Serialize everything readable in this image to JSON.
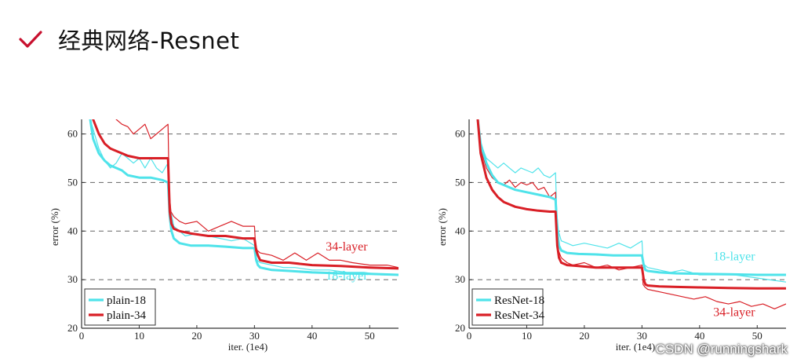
{
  "slide": {
    "title": "经典网络-Resnet",
    "watermark": "CSDN @runningshark",
    "accent_color": "#c8102e"
  },
  "chart_data": [
    {
      "type": "line",
      "xlabel": "iter. (1e4)",
      "ylabel": "error (%)",
      "xlim": [
        0,
        55
      ],
      "ylim": [
        20,
        63
      ],
      "xticks": [
        0,
        10,
        20,
        30,
        40,
        50
      ],
      "yticks": [
        20,
        30,
        40,
        50,
        60
      ],
      "grid": "horizontal-dashed",
      "legend_position": "bottom-left",
      "series": [
        {
          "name": "plain-18",
          "color": "#4fe3ea",
          "role": "train",
          "x": [
            1.5,
            3,
            4,
            5,
            6,
            7,
            8,
            9,
            10,
            11,
            12,
            13,
            14,
            15,
            15.2,
            15.5,
            16,
            17,
            18,
            20,
            22,
            24,
            26,
            28,
            30,
            30.2,
            30.5,
            31,
            33,
            35,
            37,
            40,
            43,
            46,
            49,
            52,
            55
          ],
          "y": [
            63,
            57,
            54.5,
            53,
            54,
            56,
            55,
            54,
            55,
            53,
            55,
            53,
            52,
            54,
            46,
            44,
            41,
            40,
            39,
            39.5,
            39,
            38.5,
            38,
            38.5,
            37,
            35,
            34,
            33.5,
            33,
            32.5,
            32.5,
            32,
            32,
            31.5,
            31.5,
            31,
            31
          ]
        },
        {
          "name": "plain-34",
          "color": "#d91f26",
          "role": "train",
          "x": [
            6,
            7,
            8,
            9,
            10,
            11,
            12,
            13,
            14,
            15,
            15.2,
            15.5,
            16,
            17,
            18,
            20,
            22,
            24,
            26,
            28,
            30,
            30.2,
            30.5,
            31,
            33,
            35,
            37,
            39,
            41,
            43,
            45,
            47,
            50,
            53,
            55
          ],
          "y": [
            63,
            62,
            61.5,
            60,
            61,
            62,
            59,
            60,
            61,
            62,
            48,
            44,
            43,
            42,
            41.5,
            42,
            40,
            41,
            42,
            41,
            41,
            37,
            36,
            35.5,
            35,
            34,
            35.5,
            34,
            35.5,
            34,
            34,
            33.5,
            33,
            33,
            32.5
          ]
        },
        {
          "name": "plain-18",
          "color": "#4fe3ea",
          "role": "val",
          "legend": true,
          "x": [
            1.5,
            2,
            3,
            4,
            5,
            6,
            7,
            8,
            10,
            12,
            14,
            15,
            15.3,
            15.6,
            16,
            17,
            19,
            22,
            25,
            28,
            30,
            30.3,
            30.6,
            31,
            33,
            36,
            40,
            45,
            50,
            55
          ],
          "y": [
            63,
            59,
            56,
            54.5,
            53.5,
            53,
            52.5,
            51.5,
            51,
            51,
            50.5,
            50,
            43,
            40,
            38.5,
            37.5,
            37,
            37,
            36.8,
            36.5,
            36.5,
            34,
            33,
            32.5,
            32,
            31.8,
            31.5,
            31.3,
            31.2,
            31
          ]
        },
        {
          "name": "plain-34",
          "color": "#d91f26",
          "role": "val",
          "legend": true,
          "x": [
            2,
            3,
            4,
            5,
            6,
            7,
            8,
            10,
            12,
            14,
            15,
            15.3,
            15.6,
            16,
            17,
            19,
            22,
            25,
            28,
            30,
            30.3,
            30.6,
            31,
            33,
            36,
            40,
            45,
            50,
            55
          ],
          "y": [
            63,
            60,
            58,
            57,
            56.5,
            56,
            55.5,
            55,
            55,
            55,
            55,
            44,
            41.5,
            40.5,
            40,
            39.5,
            39,
            39,
            38.5,
            38.5,
            36,
            35,
            34,
            33.5,
            33.5,
            33,
            32.8,
            32.5,
            32.3
          ]
        }
      ],
      "annotations": [
        {
          "text": "34-layer",
          "x": 46,
          "y": 36,
          "color": "#d91f26"
        },
        {
          "text": "18-layer",
          "x": 46,
          "y": 30,
          "color": "#4fe3ea"
        }
      ]
    },
    {
      "type": "line",
      "xlabel": "iter. (1e4)",
      "ylabel": "error (%)",
      "xlim": [
        0,
        55
      ],
      "ylim": [
        20,
        63
      ],
      "xticks": [
        0,
        10,
        20,
        30,
        40,
        50
      ],
      "yticks": [
        20,
        30,
        40,
        50,
        60
      ],
      "grid": "horizontal-dashed",
      "legend_position": "bottom-left",
      "series": [
        {
          "name": "ResNet-18",
          "color": "#4fe3ea",
          "role": "train",
          "x": [
            1.5,
            2,
            3,
            4,
            5,
            6,
            7,
            8,
            9,
            10,
            11,
            12,
            13,
            14,
            15,
            15.2,
            15.5,
            16,
            17,
            18,
            20,
            22,
            24,
            26,
            28,
            30,
            30.2,
            30.5,
            31,
            33,
            35,
            37,
            40,
            43,
            46,
            49,
            52,
            55
          ],
          "y": [
            63,
            58,
            55,
            54,
            53,
            54,
            53,
            52,
            53,
            52.5,
            52,
            53,
            51.5,
            51,
            52,
            44,
            40,
            38,
            37.5,
            37,
            37.5,
            37,
            36.5,
            37.5,
            36.5,
            38,
            33.5,
            33,
            32.5,
            32,
            31.5,
            32,
            31,
            31,
            31,
            30.5,
            30,
            29.5
          ]
        },
        {
          "name": "ResNet-34",
          "color": "#d91f26",
          "role": "train",
          "x": [
            1.5,
            2,
            3,
            4,
            5,
            6,
            7,
            8,
            9,
            10,
            11,
            12,
            13,
            14,
            15,
            15.2,
            15.5,
            16,
            17,
            18,
            20,
            22,
            24,
            26,
            28,
            30,
            30.2,
            30.5,
            31,
            33,
            35,
            37,
            39,
            41,
            43,
            45,
            47,
            49,
            51,
            53,
            55
          ],
          "y": [
            63,
            57,
            53,
            51,
            50,
            49.5,
            50.5,
            49,
            50,
            49.5,
            50,
            48.5,
            49,
            47,
            48,
            40,
            36,
            34.5,
            33.5,
            33,
            33.5,
            32.5,
            33,
            32,
            32.5,
            33,
            29,
            28.5,
            28,
            27.5,
            27,
            26.5,
            26,
            26.5,
            25.5,
            25,
            25.5,
            24.5,
            25,
            24,
            25
          ]
        },
        {
          "name": "ResNet-18",
          "color": "#4fe3ea",
          "role": "val",
          "legend": true,
          "x": [
            1.5,
            2,
            3,
            4,
            5,
            6,
            7,
            8,
            10,
            12,
            14,
            15,
            15.3,
            15.6,
            16,
            17,
            19,
            22,
            25,
            28,
            30,
            30.3,
            30.6,
            31,
            33,
            36,
            40,
            45,
            50,
            55
          ],
          "y": [
            63,
            58,
            54,
            51.5,
            50,
            49.5,
            49,
            48.5,
            48,
            47.5,
            47,
            46.5,
            40,
            37,
            36,
            35.5,
            35.3,
            35.2,
            35,
            35,
            35,
            33,
            32,
            31.8,
            31.5,
            31.3,
            31.2,
            31.1,
            31,
            31
          ]
        },
        {
          "name": "ResNet-34",
          "color": "#d91f26",
          "role": "val",
          "legend": true,
          "x": [
            1.5,
            2,
            3,
            4,
            5,
            6,
            7,
            8,
            10,
            12,
            14,
            15,
            15.3,
            15.6,
            16,
            17,
            19,
            22,
            25,
            28,
            30,
            30.3,
            30.6,
            31,
            33,
            36,
            40,
            45,
            50,
            55
          ],
          "y": [
            63,
            56,
            51,
            48.5,
            47,
            46,
            45.5,
            45,
            44.5,
            44.2,
            44,
            44,
            37,
            34.5,
            33.5,
            33,
            32.8,
            32.5,
            32.5,
            32.5,
            32.5,
            30,
            29,
            28.8,
            28.6,
            28.5,
            28.4,
            28.3,
            28.2,
            28.2
          ]
        }
      ],
      "annotations": [
        {
          "text": "18-layer",
          "x": 46,
          "y": 34,
          "color": "#4fe3ea"
        },
        {
          "text": "34-layer",
          "x": 46,
          "y": 22.5,
          "color": "#d91f26"
        }
      ]
    }
  ]
}
